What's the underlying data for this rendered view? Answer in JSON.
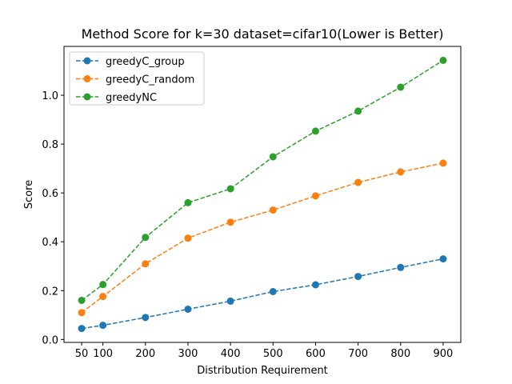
{
  "chart_data": {
    "type": "line",
    "title": "Method Score for k=30 dataset=cifar10(Lower is Better)",
    "xlabel": "Distribution Requirement",
    "ylabel": "Score",
    "x": [
      50,
      100,
      200,
      300,
      400,
      500,
      600,
      700,
      800,
      900
    ],
    "xticks": [
      50,
      100,
      200,
      300,
      400,
      500,
      600,
      700,
      800,
      900
    ],
    "yticks": [
      0.0,
      0.2,
      0.4,
      0.6,
      0.8,
      1.0
    ],
    "ytick_labels": [
      "0.0",
      "0.2",
      "0.4",
      "0.6",
      "0.8",
      "1.0"
    ],
    "xlim": [
      8.5,
      941.5
    ],
    "ylim": [
      -0.012,
      1.2
    ],
    "grid": false,
    "legend_position": "upper-left",
    "series": [
      {
        "name": "greedyC_group",
        "color": "#1f77b4",
        "values": [
          0.045,
          0.058,
          0.09,
          0.124,
          0.157,
          0.196,
          0.224,
          0.258,
          0.295,
          0.33
        ]
      },
      {
        "name": "greedyC_random",
        "color": "#ff7f0e",
        "values": [
          0.11,
          0.176,
          0.31,
          0.415,
          0.48,
          0.53,
          0.588,
          0.643,
          0.686,
          0.722
        ]
      },
      {
        "name": "greedyNC",
        "color": "#2ca02c",
        "values": [
          0.16,
          0.225,
          0.418,
          0.56,
          0.617,
          0.748,
          0.853,
          0.935,
          1.033,
          1.143
        ]
      }
    ]
  }
}
